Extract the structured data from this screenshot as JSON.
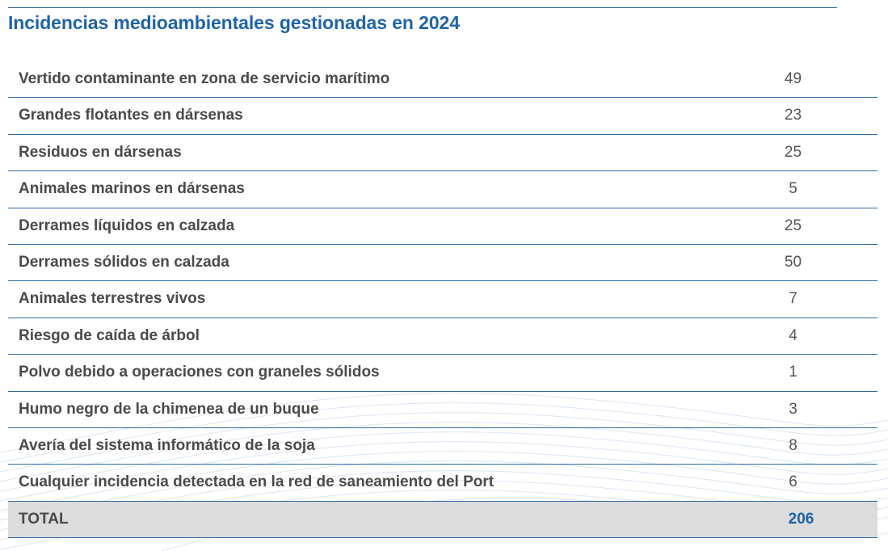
{
  "title": "Incidencias medioambientales gestionadas en 2024",
  "rows": [
    {
      "label": "Vertido contaminante en zona de servicio marítimo",
      "value": "49"
    },
    {
      "label": "Grandes flotantes en dársenas",
      "value": "23"
    },
    {
      "label": "Residuos en dársenas",
      "value": "25"
    },
    {
      "label": "Animales marinos en dársenas",
      "value": "5"
    },
    {
      "label": "Derrames líquidos en calzada",
      "value": "25"
    },
    {
      "label": "Derrames sólidos en calzada",
      "value": "50"
    },
    {
      "label": "Animales terrestres vivos",
      "value": "7"
    },
    {
      "label": "Riesgo de caída de árbol",
      "value": "4"
    },
    {
      "label": "Polvo debido a operaciones con graneles sólidos",
      "value": "1"
    },
    {
      "label": "Humo negro de la chimenea de un buque",
      "value": "3"
    },
    {
      "label": "Avería del sistema informático de la soja",
      "value": "8"
    },
    {
      "label": "Cualquier incidencia detectada en la red de saneamiento del Port",
      "value": "6"
    }
  ],
  "total": {
    "label": "TOTAL",
    "value": "206"
  },
  "colors": {
    "accent": "#1f64a8",
    "rule": "#2d6ba2",
    "text": "#4a4a4a",
    "total_background": "#dcdcdc",
    "wave": "#bcd3ea"
  }
}
